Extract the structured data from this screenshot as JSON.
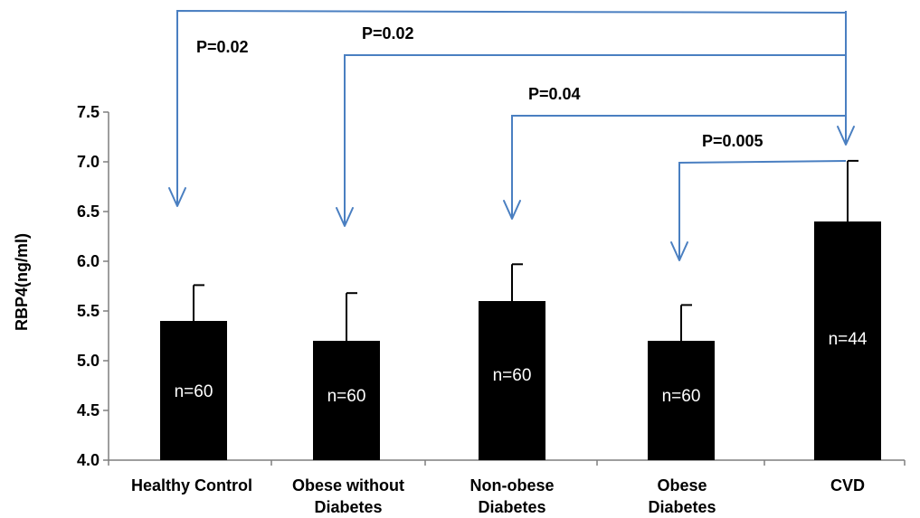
{
  "chart_data": {
    "type": "bar",
    "ylabel": "RBP4(ng/ml)",
    "ylim": [
      4.0,
      7.5
    ],
    "yticks": [
      "4.0",
      "4.5",
      "5.0",
      "5.5",
      "6.0",
      "6.5",
      "7.0",
      "7.5"
    ],
    "categories": [
      [
        "Healthy  Control"
      ],
      [
        "Obese without",
        "Diabetes"
      ],
      [
        "Non-obese",
        "Diabetes"
      ],
      [
        "Obese",
        "Diabetes"
      ],
      [
        "CVD"
      ]
    ],
    "values": [
      5.4,
      5.2,
      5.6,
      5.2,
      6.4
    ],
    "error_upper": [
      5.76,
      5.68,
      5.97,
      5.56,
      7.01
    ],
    "sample_labels": [
      "n=60",
      "n=60",
      "n=60",
      "n=60",
      "n=44"
    ],
    "bar_color": "#000000",
    "bracket_color": "#4a7fc1",
    "comparisons": [
      {
        "from": 0,
        "to": 4,
        "label": "P=0.02"
      },
      {
        "from": 1,
        "to": 4,
        "label": "P=0.02"
      },
      {
        "from": 2,
        "to": 4,
        "label": "P=0.04"
      },
      {
        "from": 3,
        "to": 4,
        "label": "P=0.005"
      }
    ]
  }
}
